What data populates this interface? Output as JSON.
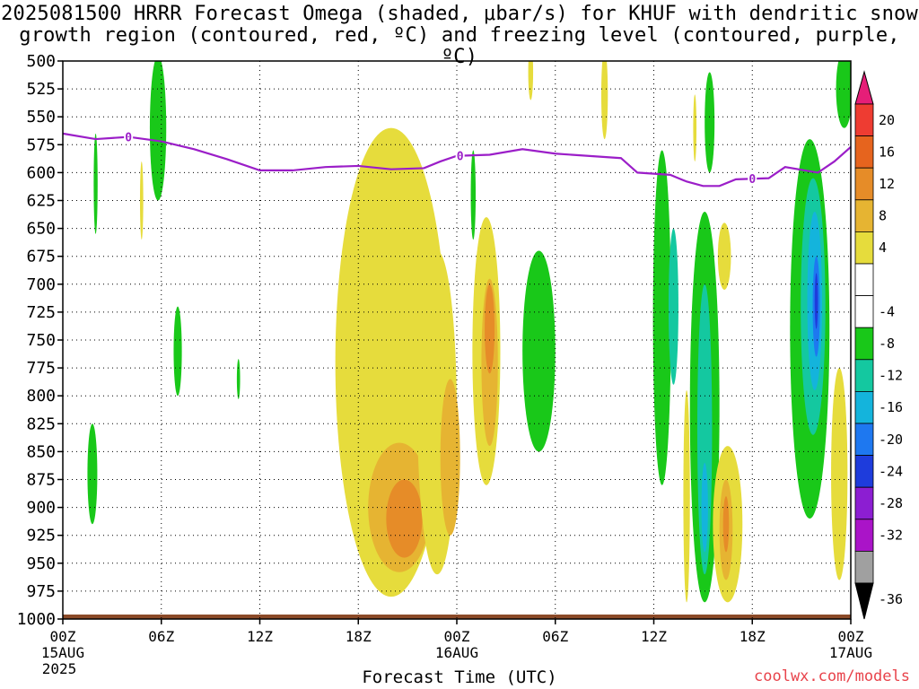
{
  "title_line1": "2025081500 HRRR Forecast Omega (shaded, μbar/s) for KHUF with dendritic snow",
  "title_line2": "growth region (contoured, red, ºC) and freezing level (contoured, purple, ºC)",
  "xaxis_title": "Forecast Time (UTC)",
  "credit": "coolwx.com/models",
  "chart_data": {
    "type": "heatmap",
    "x_ticks": [
      {
        "hour": 0,
        "label": "00Z",
        "sub": "15AUG",
        "sub2": "2025"
      },
      {
        "hour": 6,
        "label": "06Z"
      },
      {
        "hour": 12,
        "label": "12Z"
      },
      {
        "hour": 18,
        "label": "18Z"
      },
      {
        "hour": 24,
        "label": "00Z",
        "sub": "16AUG"
      },
      {
        "hour": 30,
        "label": "06Z"
      },
      {
        "hour": 36,
        "label": "12Z"
      },
      {
        "hour": 42,
        "label": "18Z"
      },
      {
        "hour": 48,
        "label": "00Z",
        "sub": "17AUG"
      }
    ],
    "xlim": [
      0,
      48
    ],
    "y_ticks": [
      500,
      525,
      550,
      575,
      600,
      625,
      650,
      675,
      700,
      725,
      750,
      775,
      800,
      825,
      850,
      875,
      900,
      925,
      950,
      975,
      1000
    ],
    "ylim": [
      500,
      1000
    ],
    "ylabel": "",
    "colorbar_levels": [
      "20",
      "16",
      "12",
      "8",
      "4",
      "-4",
      "-8",
      "-12",
      "-16",
      "-20",
      "-24",
      "-28",
      "-32",
      "-36"
    ],
    "colors": {
      "green": "#19c819",
      "teal": "#14c8a0",
      "cyan": "#14b4dc",
      "blue": "#1e78f0",
      "darkblue": "#1e3cdc",
      "purple": "#8c1ed2",
      "violet": "#aa14c8",
      "gray": "#a0a0a0",
      "yellow": "#e6dc3c",
      "gold": "#e6b432",
      "orange": "#e68c28",
      "darkorange": "#e6641e",
      "red": "#ee3c32",
      "magenta": "#e61e78",
      "freezing_line": "#9b1ec8",
      "ground": "#8b4a28"
    },
    "freezing_level_label": "0",
    "freezing_level": [
      {
        "h": 0,
        "p": 565
      },
      {
        "h": 2,
        "p": 570
      },
      {
        "h": 4,
        "p": 568
      },
      {
        "h": 6,
        "p": 572
      },
      {
        "h": 8,
        "p": 579
      },
      {
        "h": 10,
        "p": 588
      },
      {
        "h": 12,
        "p": 598
      },
      {
        "h": 14,
        "p": 598
      },
      {
        "h": 16,
        "p": 595
      },
      {
        "h": 18,
        "p": 594
      },
      {
        "h": 20,
        "p": 597
      },
      {
        "h": 22,
        "p": 596
      },
      {
        "h": 23,
        "p": 590
      },
      {
        "h": 24,
        "p": 585
      },
      {
        "h": 26,
        "p": 584
      },
      {
        "h": 28,
        "p": 579
      },
      {
        "h": 30,
        "p": 583
      },
      {
        "h": 32,
        "p": 585
      },
      {
        "h": 34,
        "p": 587
      },
      {
        "h": 35,
        "p": 600
      },
      {
        "h": 37,
        "p": 602
      },
      {
        "h": 38,
        "p": 608
      },
      {
        "h": 39,
        "p": 612
      },
      {
        "h": 40,
        "p": 612
      },
      {
        "h": 41,
        "p": 606
      },
      {
        "h": 43,
        "p": 605
      },
      {
        "h": 44,
        "p": 595
      },
      {
        "h": 46,
        "p": 600
      },
      {
        "h": 47,
        "p": 590
      },
      {
        "h": 48,
        "p": 577
      }
    ],
    "blobs": [
      {
        "h": 2.0,
        "p": 610,
        "rw": 0.12,
        "rp": 45,
        "c": "green"
      },
      {
        "h": 1.8,
        "p": 870,
        "rw": 0.3,
        "rp": 45,
        "c": "green"
      },
      {
        "h": 5.8,
        "p": 560,
        "rw": 0.5,
        "rp": 65,
        "c": "green"
      },
      {
        "h": 4.8,
        "p": 625,
        "rw": 0.1,
        "rp": 35,
        "c": "yellow"
      },
      {
        "h": 7.0,
        "p": 760,
        "rw": 0.25,
        "rp": 40,
        "c": "green"
      },
      {
        "h": 10.7,
        "p": 785,
        "rw": 0.1,
        "rp": 18,
        "c": "green"
      },
      {
        "h": 20.0,
        "p": 770,
        "rw": 3.4,
        "rp": 210,
        "c": "yellow"
      },
      {
        "h": 20.5,
        "p": 900,
        "rw": 1.9,
        "rp": 58,
        "c": "gold"
      },
      {
        "h": 20.8,
        "p": 910,
        "rw": 1.1,
        "rp": 35,
        "c": "orange"
      },
      {
        "h": 22.8,
        "p": 815,
        "rw": 1.2,
        "rp": 145,
        "c": "yellow"
      },
      {
        "h": 23.6,
        "p": 855,
        "rw": 0.6,
        "rp": 70,
        "c": "gold"
      },
      {
        "h": 25.0,
        "p": 620,
        "rw": 0.15,
        "rp": 40,
        "c": "green"
      },
      {
        "h": 25.8,
        "p": 760,
        "rw": 0.85,
        "rp": 120,
        "c": "yellow"
      },
      {
        "h": 26.0,
        "p": 770,
        "rw": 0.5,
        "rp": 75,
        "c": "gold"
      },
      {
        "h": 26.0,
        "p": 740,
        "rw": 0.3,
        "rp": 40,
        "c": "orange"
      },
      {
        "h": 29.0,
        "p": 760,
        "rw": 1.0,
        "rp": 90,
        "c": "green"
      },
      {
        "h": 28.5,
        "p": 510,
        "rw": 0.15,
        "rp": 25,
        "c": "yellow"
      },
      {
        "h": 33.0,
        "p": 530,
        "rw": 0.2,
        "rp": 40,
        "c": "yellow"
      },
      {
        "h": 36.5,
        "p": 730,
        "rw": 0.55,
        "rp": 150,
        "c": "green"
      },
      {
        "h": 37.2,
        "p": 720,
        "rw": 0.3,
        "rp": 70,
        "c": "teal"
      },
      {
        "h": 39.1,
        "p": 810,
        "rw": 0.9,
        "rp": 175,
        "c": "green"
      },
      {
        "h": 39.1,
        "p": 830,
        "rw": 0.45,
        "rp": 130,
        "c": "teal"
      },
      {
        "h": 39.1,
        "p": 900,
        "rw": 0.2,
        "rp": 40,
        "c": "cyan"
      },
      {
        "h": 39.4,
        "p": 555,
        "rw": 0.3,
        "rp": 45,
        "c": "green"
      },
      {
        "h": 38.5,
        "p": 560,
        "rw": 0.1,
        "rp": 30,
        "c": "yellow"
      },
      {
        "h": 40.5,
        "p": 915,
        "rw": 0.9,
        "rp": 70,
        "c": "yellow"
      },
      {
        "h": 40.4,
        "p": 920,
        "rw": 0.4,
        "rp": 45,
        "c": "gold"
      },
      {
        "h": 40.4,
        "p": 915,
        "rw": 0.18,
        "rp": 25,
        "c": "orange"
      },
      {
        "h": 40.3,
        "p": 675,
        "rw": 0.4,
        "rp": 30,
        "c": "yellow"
      },
      {
        "h": 38.0,
        "p": 890,
        "rw": 0.2,
        "rp": 95,
        "c": "yellow"
      },
      {
        "h": 45.5,
        "p": 740,
        "rw": 1.2,
        "rp": 170,
        "c": "green"
      },
      {
        "h": 45.7,
        "p": 720,
        "rw": 0.75,
        "rp": 115,
        "c": "teal"
      },
      {
        "h": 45.8,
        "p": 715,
        "rw": 0.45,
        "rp": 80,
        "c": "cyan"
      },
      {
        "h": 45.9,
        "p": 720,
        "rw": 0.22,
        "rp": 45,
        "c": "blue"
      },
      {
        "h": 45.9,
        "p": 715,
        "rw": 0.1,
        "rp": 25,
        "c": "darkblue"
      },
      {
        "h": 47.3,
        "p": 870,
        "rw": 0.5,
        "rp": 95,
        "c": "yellow"
      },
      {
        "h": 47.6,
        "p": 525,
        "rw": 0.5,
        "rp": 35,
        "c": "green"
      }
    ]
  }
}
